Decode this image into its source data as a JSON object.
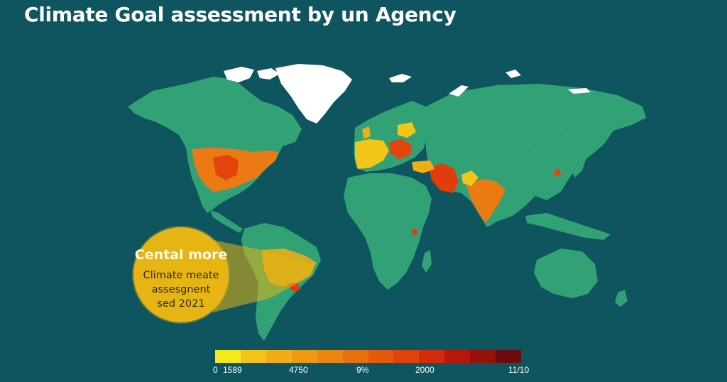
{
  "title": "Climate Goal assessment by un Agency",
  "callout": {
    "heading": "Cental more",
    "body_lines": [
      "Climate meate",
      "assesgnent",
      "sed 2021"
    ]
  },
  "legend": {
    "colors": [
      "#f4ea1a",
      "#f2c618",
      "#f0ad16",
      "#ee9a14",
      "#ec8612",
      "#e8710f",
      "#e45a0d",
      "#e0420c",
      "#d22a0b",
      "#b8180b",
      "#96100c",
      "#6f0a0e"
    ],
    "tick_labels": [
      "0",
      "1589",
      "4750",
      "9%",
      "2000",
      "11/10"
    ]
  },
  "colors": {
    "background": "#0e5560",
    "land": "#2e9e73",
    "ice": "#ffffff",
    "callout": "#e6b413"
  }
}
